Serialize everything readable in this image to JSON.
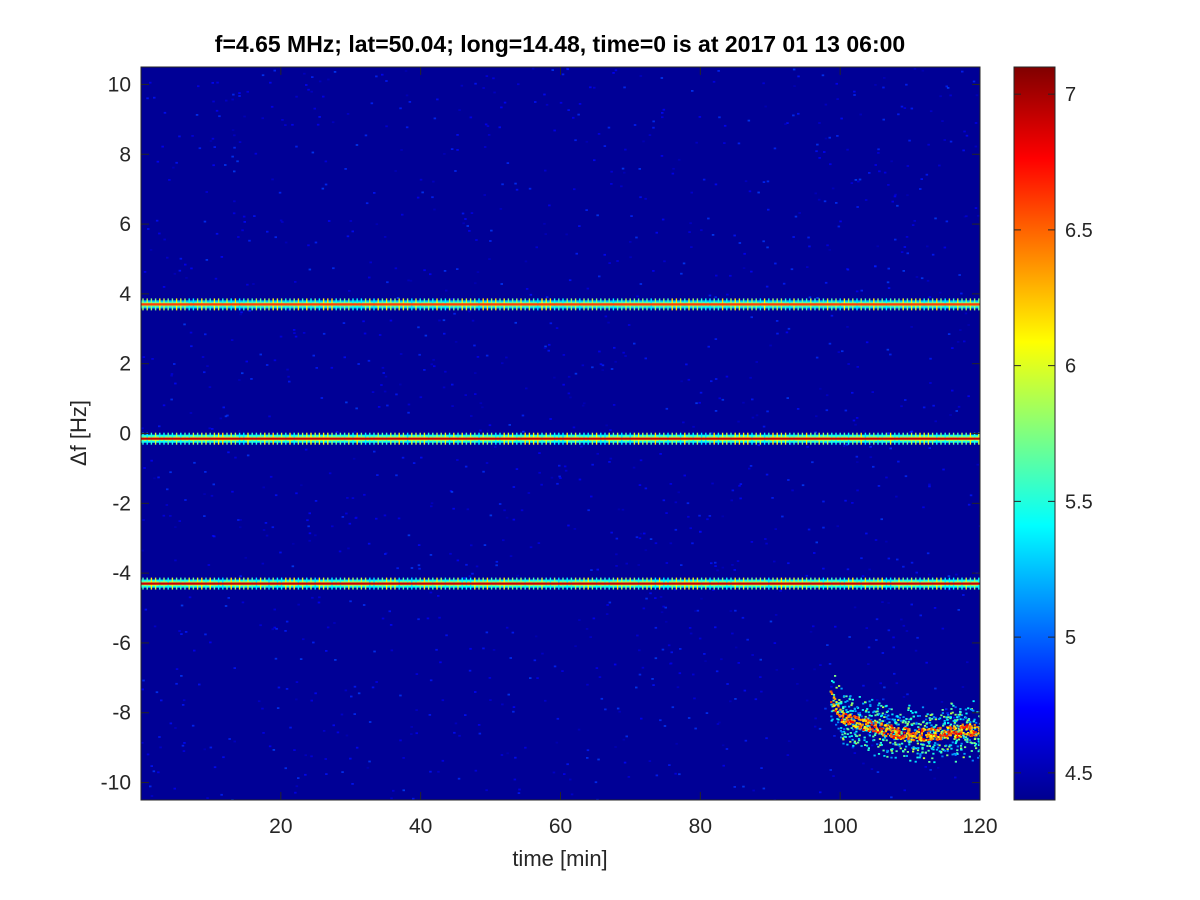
{
  "chart_data": {
    "type": "heatmap",
    "title": "f=4.65 MHz;  lat=50.04; long=14.48, time=0 is at 2017 01 13 06:00",
    "xlabel": "time [min]",
    "ylabel": "Δf [Hz]",
    "xlim": [
      0,
      120
    ],
    "ylim": [
      -10.5,
      10.5
    ],
    "x_ticks": [
      20,
      40,
      60,
      80,
      100,
      120
    ],
    "y_ticks": [
      10,
      8,
      6,
      4,
      2,
      0,
      -2,
      -4,
      -6,
      -8,
      -10
    ],
    "colorbar": {
      "colormap": "jet",
      "clim": [
        4.4,
        7.1
      ],
      "ticks": [
        4.5,
        5,
        5.5,
        6,
        6.5,
        7
      ]
    },
    "background_level": 4.45,
    "traces": [
      {
        "x": [
          0,
          120
        ],
        "y": [
          3.7,
          3.7
        ],
        "peak_level": 6.6,
        "pattern": "periodic-ticks"
      },
      {
        "x": [
          0,
          120
        ],
        "y": [
          -0.15,
          -0.15
        ],
        "peak_level": 6.9,
        "pattern": "periodic-ticks"
      },
      {
        "x": [
          0,
          120
        ],
        "y": [
          -4.3,
          -4.3
        ],
        "peak_level": 6.9,
        "pattern": "periodic-ticks"
      },
      {
        "x": [
          98.5,
          100,
          102,
          104,
          106,
          108,
          110,
          112,
          114,
          116,
          118,
          120
        ],
        "y": [
          -7.5,
          -8.1,
          -8.25,
          -8.35,
          -8.45,
          -8.55,
          -8.6,
          -8.6,
          -8.58,
          -8.52,
          -8.47,
          -8.45
        ],
        "peak_level": 6.8,
        "pattern": "scattered"
      }
    ],
    "grid": false
  }
}
